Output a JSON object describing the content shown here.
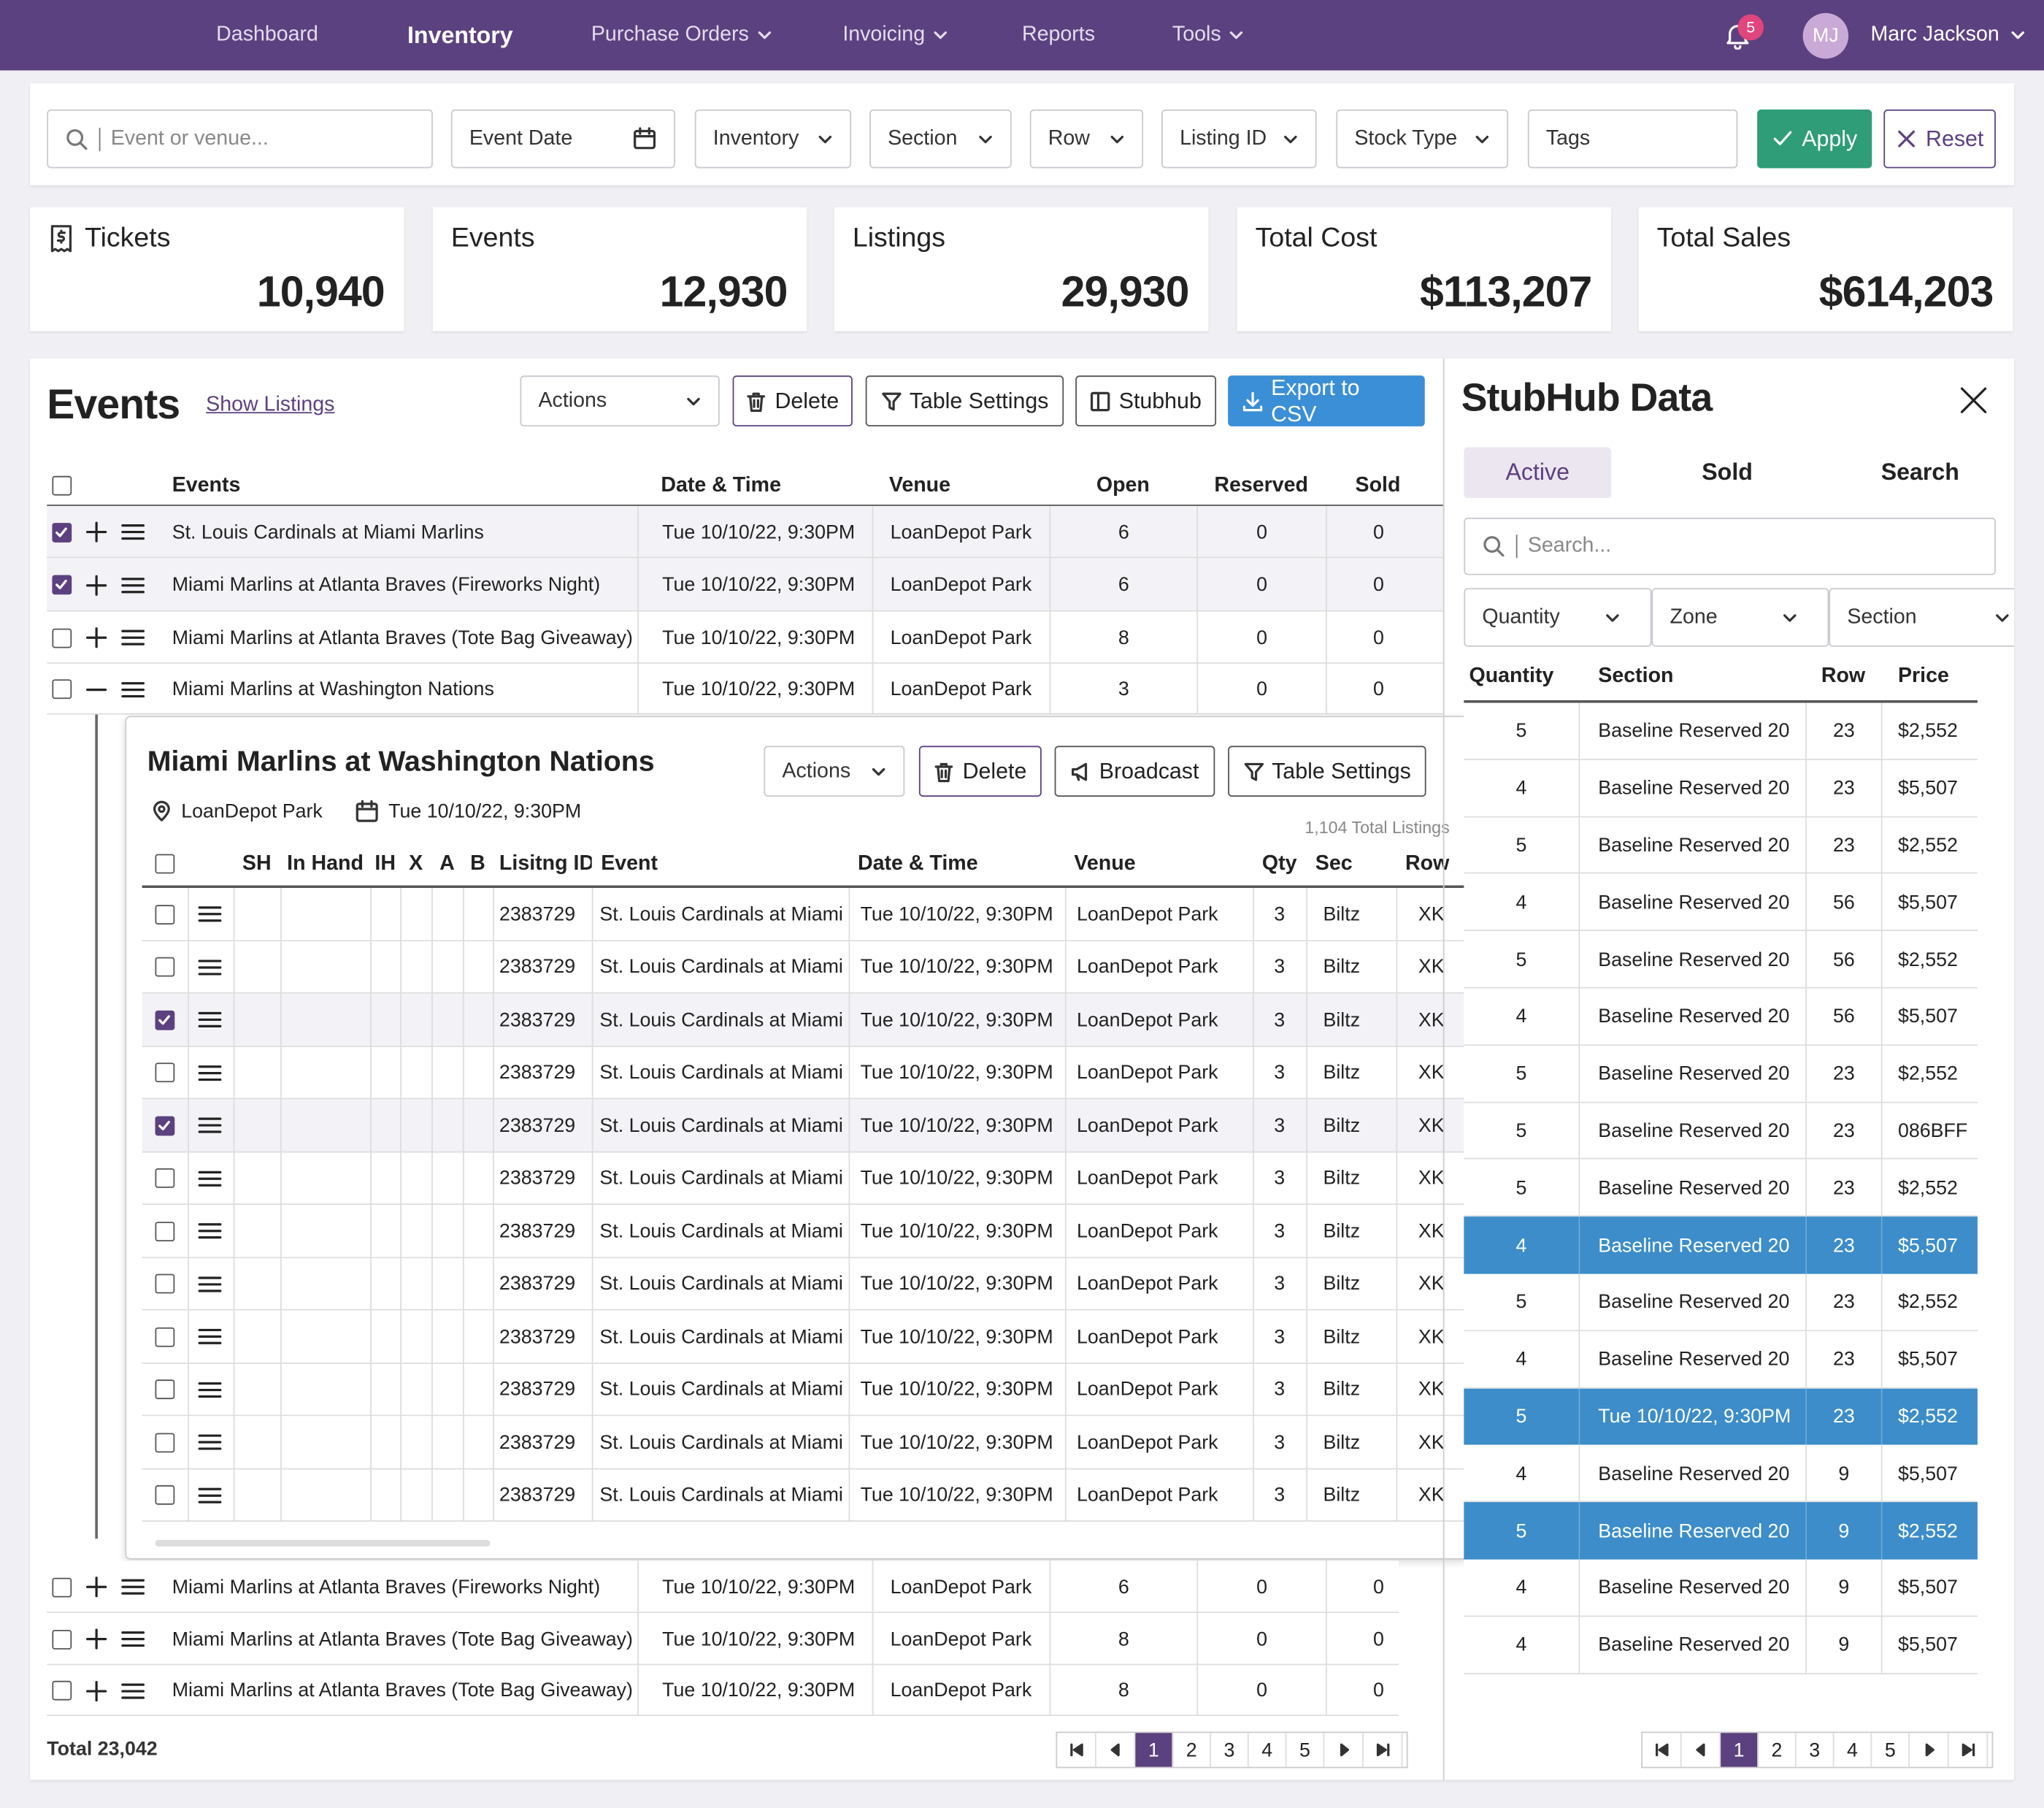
{
  "nav": {
    "items": [
      {
        "label": "Dashboard",
        "dropdown": false
      },
      {
        "label": "Inventory",
        "dropdown": false,
        "active": true
      },
      {
        "label": "Purchase Orders",
        "dropdown": true
      },
      {
        "label": "Invoicing",
        "dropdown": true
      },
      {
        "label": "Reports",
        "dropdown": false
      },
      {
        "label": "Tools",
        "dropdown": true
      }
    ],
    "notifications": 5,
    "initials": "MJ",
    "user": "Marc Jackson"
  },
  "filters": {
    "search": "Event or venue...",
    "fields": [
      {
        "label": "Event Date",
        "kind": "date"
      },
      {
        "label": "Inventory",
        "kind": "select"
      },
      {
        "label": "Section",
        "kind": "select"
      },
      {
        "label": "Row",
        "kind": "select"
      },
      {
        "label": "Listing ID",
        "kind": "select"
      },
      {
        "label": "Stock Type",
        "kind": "select"
      },
      {
        "label": "Tags",
        "kind": "text"
      }
    ],
    "apply": "Apply",
    "reset": "Reset"
  },
  "stats": [
    {
      "label": "Tickets",
      "value": "10,940"
    },
    {
      "label": "Events",
      "value": "12,930"
    },
    {
      "label": "Listings",
      "value": "29,930"
    },
    {
      "label": "Total Cost",
      "value": "$113,207"
    },
    {
      "label": "Total Sales",
      "value": "$614,203"
    }
  ],
  "events": {
    "title": "Events",
    "link": "Show Listings",
    "actions": "Actions",
    "buttons": [
      "Delete",
      "Table Settings",
      "Stubhub",
      "Export to CSV"
    ],
    "columns": [
      "Events",
      "Date & Time",
      "Venue",
      "Open",
      "Reserved",
      "Sold"
    ],
    "rows": [
      {
        "event": "St. Louis Cardinals at Miami Marlins",
        "date": "Tue 10/10/22, 9:30PM",
        "venue": "LoanDepot Park",
        "open": 6,
        "reserved": 0,
        "sold": 0,
        "checked": true
      },
      {
        "event": "Miami Marlins at Atlanta Braves (Fireworks Night)",
        "date": "Tue 10/10/22, 9:30PM",
        "venue": "LoanDepot Park",
        "open": 6,
        "reserved": 0,
        "sold": 0,
        "checked": true
      },
      {
        "event": "Miami Marlins at Atlanta Braves (Tote Bag Giveaway)",
        "date": "Tue 10/10/22, 9:30PM",
        "venue": "LoanDepot Park",
        "open": 8,
        "reserved": 0,
        "sold": 0,
        "checked": false
      },
      {
        "event": "Miami Marlins at Washington Nations",
        "date": "Tue 10/10/22, 9:30PM",
        "venue": "LoanDepot Park",
        "open": 3,
        "reserved": 0,
        "sold": 0,
        "checked": false,
        "expanded": true
      }
    ],
    "detail": {
      "title": "Miami Marlins at Washington Nations",
      "venue": "LoanDepot Park",
      "date": "Tue 10/10/22, 9:30PM",
      "actions": "Actions",
      "buttons": [
        "Delete",
        "Broadcast",
        "Table Settings"
      ],
      "total_listings": "1,104 Total Listings",
      "columns": [
        "SH",
        "In Hand",
        "IH",
        "X",
        "A",
        "B",
        "Lisitng ID",
        "Event",
        "Date & Time",
        "Venue",
        "Qty",
        "Sec",
        "Row"
      ],
      "rows": [
        {
          "id": "2383729",
          "event": "St. Louis Cardinals at Miami",
          "date": "Tue 10/10/22, 9:30PM",
          "venue": "LoanDepot Park",
          "qty": 3,
          "sec": "Biltz",
          "row": "XK",
          "checked": false
        },
        {
          "id": "2383729",
          "event": "St. Louis Cardinals at Miami",
          "date": "Tue 10/10/22, 9:30PM",
          "venue": "LoanDepot Park",
          "qty": 3,
          "sec": "Biltz",
          "row": "XK",
          "checked": false
        },
        {
          "id": "2383729",
          "event": "St. Louis Cardinals at Miami",
          "date": "Tue 10/10/22, 9:30PM",
          "venue": "LoanDepot Park",
          "qty": 3,
          "sec": "Biltz",
          "row": "XK",
          "checked": true
        },
        {
          "id": "2383729",
          "event": "St. Louis Cardinals at Miami",
          "date": "Tue 10/10/22, 9:30PM",
          "venue": "LoanDepot Park",
          "qty": 3,
          "sec": "Biltz",
          "row": "XK",
          "checked": false
        },
        {
          "id": "2383729",
          "event": "St. Louis Cardinals at Miami",
          "date": "Tue 10/10/22, 9:30PM",
          "venue": "LoanDepot Park",
          "qty": 3,
          "sec": "Biltz",
          "row": "XK",
          "checked": true
        },
        {
          "id": "2383729",
          "event": "St. Louis Cardinals at Miami",
          "date": "Tue 10/10/22, 9:30PM",
          "venue": "LoanDepot Park",
          "qty": 3,
          "sec": "Biltz",
          "row": "XK",
          "checked": false
        },
        {
          "id": "2383729",
          "event": "St. Louis Cardinals at Miami",
          "date": "Tue 10/10/22, 9:30PM",
          "venue": "LoanDepot Park",
          "qty": 3,
          "sec": "Biltz",
          "row": "XK",
          "checked": false
        },
        {
          "id": "2383729",
          "event": "St. Louis Cardinals at Miami",
          "date": "Tue 10/10/22, 9:30PM",
          "venue": "LoanDepot Park",
          "qty": 3,
          "sec": "Biltz",
          "row": "XK",
          "checked": false
        },
        {
          "id": "2383729",
          "event": "St. Louis Cardinals at Miami",
          "date": "Tue 10/10/22, 9:30PM",
          "venue": "LoanDepot Park",
          "qty": 3,
          "sec": "Biltz",
          "row": "XK",
          "checked": false
        },
        {
          "id": "2383729",
          "event": "St. Louis Cardinals at Miami",
          "date": "Tue 10/10/22, 9:30PM",
          "venue": "LoanDepot Park",
          "qty": 3,
          "sec": "Biltz",
          "row": "XK",
          "checked": false
        },
        {
          "id": "2383729",
          "event": "St. Louis Cardinals at Miami",
          "date": "Tue 10/10/22, 9:30PM",
          "venue": "LoanDepot Park",
          "qty": 3,
          "sec": "Biltz",
          "row": "XK",
          "checked": false
        },
        {
          "id": "2383729",
          "event": "St. Louis Cardinals at Miami",
          "date": "Tue 10/10/22, 9:30PM",
          "venue": "LoanDepot Park",
          "qty": 3,
          "sec": "Biltz",
          "row": "XK",
          "checked": false
        }
      ]
    },
    "bottom_rows": [
      {
        "event": "Miami Marlins at Atlanta Braves (Fireworks Night)",
        "date": "Tue 10/10/22, 9:30PM",
        "venue": "LoanDepot Park",
        "open": 6,
        "reserved": 0,
        "sold": 0,
        "checked": false
      },
      {
        "event": "Miami Marlins at Atlanta Braves (Tote Bag Giveaway)",
        "date": "Tue 10/10/22, 9:30PM",
        "venue": "LoanDepot Park",
        "open": 8,
        "reserved": 0,
        "sold": 0,
        "checked": false
      },
      {
        "event": "Miami Marlins at Atlanta Braves (Tote Bag Giveaway)",
        "date": "Tue 10/10/22, 9:30PM",
        "venue": "LoanDepot Park",
        "open": 8,
        "reserved": 0,
        "sold": 0,
        "checked": false
      }
    ],
    "total": "Total 23,042",
    "pages": [
      1,
      2,
      3,
      4,
      5
    ],
    "current_page": 1
  },
  "stubhub": {
    "title": "StubHub Data",
    "tabs": [
      "Active",
      "Sold",
      "Search"
    ],
    "active_tab": 0,
    "search": "Search...",
    "filters": [
      "Quantity",
      "Zone",
      "Section"
    ],
    "columns": [
      "Quantity",
      "Section",
      "Row",
      "Price"
    ],
    "rows": [
      {
        "quantity": 5,
        "section": "Baseline Reserved 20",
        "row": 23,
        "price": "$2,552"
      },
      {
        "quantity": 4,
        "section": "Baseline Reserved 20",
        "row": 23,
        "price": "$5,507"
      },
      {
        "quantity": 5,
        "section": "Baseline Reserved 20",
        "row": 23,
        "price": "$2,552"
      },
      {
        "quantity": 4,
        "section": "Baseline Reserved 20",
        "row": 56,
        "price": "$5,507"
      },
      {
        "quantity": 5,
        "section": "Baseline Reserved 20",
        "row": 56,
        "price": "$2,552"
      },
      {
        "quantity": 4,
        "section": "Baseline Reserved 20",
        "row": 56,
        "price": "$5,507"
      },
      {
        "quantity": 5,
        "section": "Baseline Reserved 20",
        "row": 23,
        "price": "$2,552"
      },
      {
        "quantity": 5,
        "section": "Baseline Reserved 20",
        "row": 23,
        "price": "086BFF"
      },
      {
        "quantity": 5,
        "section": "Baseline Reserved 20",
        "row": 23,
        "price": "$2,552"
      },
      {
        "quantity": 4,
        "section": "Baseline Reserved 20",
        "row": 23,
        "price": "$5,507",
        "highlighted": true
      },
      {
        "quantity": 5,
        "section": "Baseline Reserved 20",
        "row": 23,
        "price": "$2,552"
      },
      {
        "quantity": 4,
        "section": "Baseline Reserved 20",
        "row": 23,
        "price": "$5,507"
      },
      {
        "quantity": 5,
        "section": "Tue 10/10/22, 9:30PM",
        "row": 23,
        "price": "$2,552",
        "highlighted": true
      },
      {
        "quantity": 4,
        "section": "Baseline Reserved 20",
        "row": 9,
        "price": "$5,507"
      },
      {
        "quantity": 5,
        "section": "Baseline Reserved 20",
        "row": 9,
        "price": "$2,552",
        "highlighted": true
      },
      {
        "quantity": 4,
        "section": "Baseline Reserved 20",
        "row": 9,
        "price": "$5,507"
      },
      {
        "quantity": 4,
        "section": "Baseline Reserved 20",
        "row": 9,
        "price": "$5,507"
      }
    ],
    "pages": [
      1,
      2,
      3,
      4,
      5
    ],
    "current_page": 1
  }
}
